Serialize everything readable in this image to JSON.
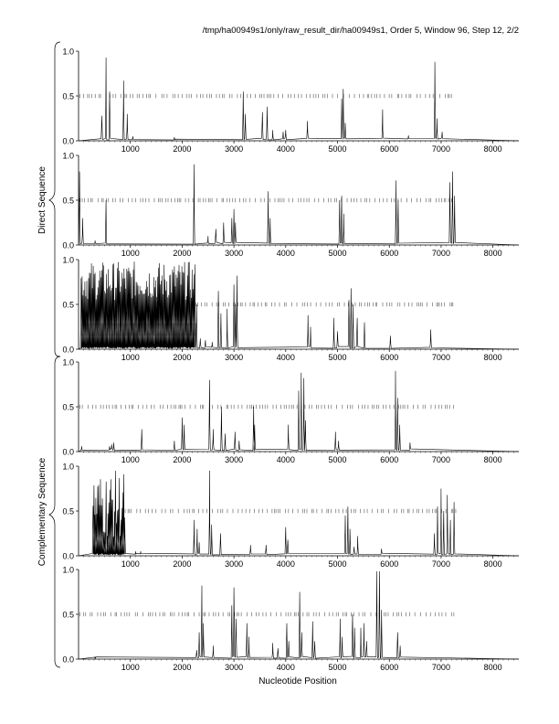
{
  "header": "/tmp/ha00949s1/only/raw_result_dir/ha00949s1, Order 5, Window 96, Step 12, 2/2",
  "xlabel": "Nucleotide Position",
  "group_labels": {
    "direct": "Direct Sequence",
    "complementary": "Complementary Sequence"
  },
  "colors": {
    "line": "#000000",
    "ticks": "#555555",
    "shade": "#b4b4b4"
  },
  "chart_data": [
    {
      "type": "line",
      "panel": 1,
      "xlim": [
        0,
        8500
      ],
      "ylim": [
        0,
        1
      ],
      "xticks": [
        "1000",
        "2000",
        "3000",
        "4000",
        "5000",
        "6000",
        "7000",
        "8000"
      ],
      "yticks": [
        "0.0",
        "0.5",
        "1.0"
      ],
      "peaks": [
        [
          450,
          0.28
        ],
        [
          530,
          0.93
        ],
        [
          600,
          0.55
        ],
        [
          870,
          0.67
        ],
        [
          940,
          0.3
        ],
        [
          1050,
          0.05
        ],
        [
          1850,
          0.04
        ],
        [
          3180,
          0.55
        ],
        [
          3220,
          0.3
        ],
        [
          3550,
          0.32
        ],
        [
          3640,
          0.38
        ],
        [
          3750,
          0.12
        ],
        [
          3950,
          0.1
        ],
        [
          4000,
          0.12
        ],
        [
          4420,
          0.22
        ],
        [
          5080,
          0.47
        ],
        [
          5110,
          0.58
        ],
        [
          5150,
          0.2
        ],
        [
          5870,
          0.35
        ],
        [
          6370,
          0.06
        ],
        [
          6880,
          0.88
        ],
        [
          6920,
          0.25
        ],
        [
          7020,
          0.1
        ]
      ],
      "markers": {
        "y": 0.5,
        "start": 30,
        "end": 7250
      }
    },
    {
      "type": "line",
      "panel": 2,
      "xlim": [
        0,
        8500
      ],
      "ylim": [
        0,
        1
      ],
      "xticks": [
        "1000",
        "2000",
        "3000",
        "4000",
        "5000",
        "6000",
        "7000",
        "8000"
      ],
      "yticks": [
        "0.0",
        "0.5",
        "1.0"
      ],
      "peaks": [
        [
          20,
          0.82
        ],
        [
          80,
          0.3
        ],
        [
          530,
          0.5
        ],
        [
          320,
          0.05
        ],
        [
          2230,
          0.9
        ],
        [
          2500,
          0.1
        ],
        [
          2650,
          0.18
        ],
        [
          2800,
          0.25
        ],
        [
          2960,
          0.3
        ],
        [
          3000,
          0.4
        ],
        [
          3030,
          0.25
        ],
        [
          3660,
          0.6
        ],
        [
          3700,
          0.3
        ],
        [
          5040,
          0.5
        ],
        [
          5080,
          0.55
        ],
        [
          5120,
          0.35
        ],
        [
          6130,
          0.72
        ],
        [
          6170,
          0.5
        ],
        [
          7170,
          0.7
        ],
        [
          7220,
          0.82
        ],
        [
          7260,
          0.55
        ]
      ],
      "markers": {
        "y": 0.5,
        "start": 30,
        "end": 7250
      }
    },
    {
      "type": "line",
      "panel": 3,
      "xlim": [
        0,
        8500
      ],
      "ylim": [
        0,
        1
      ],
      "xticks": [
        "1000",
        "2000",
        "3000",
        "4000",
        "5000",
        "6000",
        "7000",
        "8000"
      ],
      "yticks": [
        "0.0",
        "0.5",
        "1.0"
      ],
      "dense_region": [
        50,
        2250
      ],
      "peaks": [
        [
          2280,
          0.5
        ],
        [
          2350,
          0.12
        ],
        [
          2450,
          0.1
        ],
        [
          2580,
          0.08
        ],
        [
          2700,
          0.65
        ],
        [
          2750,
          0.4
        ],
        [
          2870,
          0.45
        ],
        [
          3000,
          0.72
        ],
        [
          3030,
          0.5
        ],
        [
          3060,
          0.82
        ],
        [
          4430,
          0.38
        ],
        [
          4480,
          0.25
        ],
        [
          4930,
          0.35
        ],
        [
          5000,
          0.2
        ],
        [
          5220,
          0.55
        ],
        [
          5260,
          0.68
        ],
        [
          5300,
          0.5
        ],
        [
          5380,
          0.35
        ],
        [
          5520,
          0.3
        ],
        [
          6020,
          0.15
        ],
        [
          6800,
          0.22
        ]
      ],
      "markers": {
        "y": 0.5,
        "start": 2270,
        "end": 7250
      },
      "shaded_band": {
        "x": [
          50,
          2270
        ],
        "y": [
          0.15,
          0.29
        ]
      }
    },
    {
      "type": "line",
      "panel": 4,
      "xlim": [
        0,
        8500
      ],
      "ylim": [
        0,
        1
      ],
      "xticks": [
        "1000",
        "2000",
        "3000",
        "4000",
        "5000",
        "6000",
        "7000",
        "8000"
      ],
      "yticks": [
        "0.0",
        "0.5",
        "1.0"
      ],
      "peaks": [
        [
          60,
          0.06
        ],
        [
          600,
          0.06
        ],
        [
          640,
          0.08
        ],
        [
          680,
          0.1
        ],
        [
          1220,
          0.25
        ],
        [
          1850,
          0.12
        ],
        [
          2000,
          0.38
        ],
        [
          2040,
          0.3
        ],
        [
          2530,
          0.8
        ],
        [
          2600,
          0.25
        ],
        [
          2760,
          0.5
        ],
        [
          2830,
          0.2
        ],
        [
          3020,
          0.22
        ],
        [
          3100,
          0.12
        ],
        [
          3380,
          0.5
        ],
        [
          3400,
          0.3
        ],
        [
          4050,
          0.3
        ],
        [
          4250,
          0.68
        ],
        [
          4300,
          0.88
        ],
        [
          4350,
          0.82
        ],
        [
          4380,
          0.35
        ],
        [
          4960,
          0.22
        ],
        [
          5020,
          0.12
        ],
        [
          6120,
          0.9
        ],
        [
          6160,
          0.6
        ],
        [
          6200,
          0.3
        ],
        [
          6400,
          0.1
        ]
      ],
      "markers": {
        "y": 0.5,
        "start": 30,
        "end": 7300
      }
    },
    {
      "type": "line",
      "panel": 5,
      "xlim": [
        0,
        8500
      ],
      "ylim": [
        0,
        1
      ],
      "xticks": [
        "1000",
        "2000",
        "3000",
        "4000",
        "5000",
        "6000",
        "7000",
        "8000"
      ],
      "yticks": [
        "0.0",
        "0.5",
        "1.0"
      ],
      "dense_region": [
        280,
        900
      ],
      "peaks": [
        [
          1100,
          0.05
        ],
        [
          1200,
          0.05
        ],
        [
          2230,
          0.4
        ],
        [
          2290,
          0.3
        ],
        [
          2330,
          0.15
        ],
        [
          2530,
          0.95
        ],
        [
          2570,
          0.35
        ],
        [
          2740,
          0.25
        ],
        [
          3320,
          0.12
        ],
        [
          3620,
          0.12
        ],
        [
          4000,
          0.32
        ],
        [
          4040,
          0.18
        ],
        [
          5150,
          0.45
        ],
        [
          5200,
          0.55
        ],
        [
          5240,
          0.3
        ],
        [
          5320,
          0.1
        ],
        [
          5390,
          0.22
        ],
        [
          5850,
          0.08
        ],
        [
          6870,
          0.25
        ],
        [
          6930,
          0.55
        ],
        [
          7000,
          0.75
        ],
        [
          7050,
          0.5
        ],
        [
          7120,
          0.68
        ],
        [
          7180,
          0.4
        ],
        [
          7250,
          0.6
        ]
      ],
      "markers": {
        "y": 0.5,
        "start": 900,
        "end": 7300
      }
    },
    {
      "type": "line",
      "panel": 6,
      "xlim": [
        0,
        8500
      ],
      "ylim": [
        0,
        1
      ],
      "xticks": [
        "1000",
        "2000",
        "3000",
        "4000",
        "5000",
        "6000",
        "7000",
        "8000"
      ],
      "yticks": [
        "0.0",
        "0.5",
        "1.0"
      ],
      "peaks": [
        [
          320,
          0.02
        ],
        [
          2280,
          0.1
        ],
        [
          2330,
          0.3
        ],
        [
          2380,
          0.82
        ],
        [
          2410,
          0.4
        ],
        [
          2600,
          0.15
        ],
        [
          2960,
          0.6
        ],
        [
          3000,
          0.8
        ],
        [
          3040,
          0.45
        ],
        [
          3250,
          0.4
        ],
        [
          3290,
          0.25
        ],
        [
          3750,
          0.18
        ],
        [
          3850,
          0.12
        ],
        [
          4020,
          0.4
        ],
        [
          4060,
          0.2
        ],
        [
          4270,
          0.75
        ],
        [
          4310,
          0.3
        ],
        [
          4520,
          0.42
        ],
        [
          4560,
          0.2
        ],
        [
          5050,
          0.45
        ],
        [
          5090,
          0.25
        ],
        [
          5290,
          0.5
        ],
        [
          5330,
          0.35
        ],
        [
          5450,
          0.35
        ],
        [
          5510,
          0.4
        ],
        [
          5560,
          0.2
        ],
        [
          5760,
          0.98
        ],
        [
          5810,
          0.98
        ],
        [
          5850,
          0.55
        ],
        [
          6160,
          0.3
        ],
        [
          6210,
          0.15
        ]
      ],
      "markers": {
        "y": 0.5,
        "start": 30,
        "end": 7300
      }
    }
  ]
}
